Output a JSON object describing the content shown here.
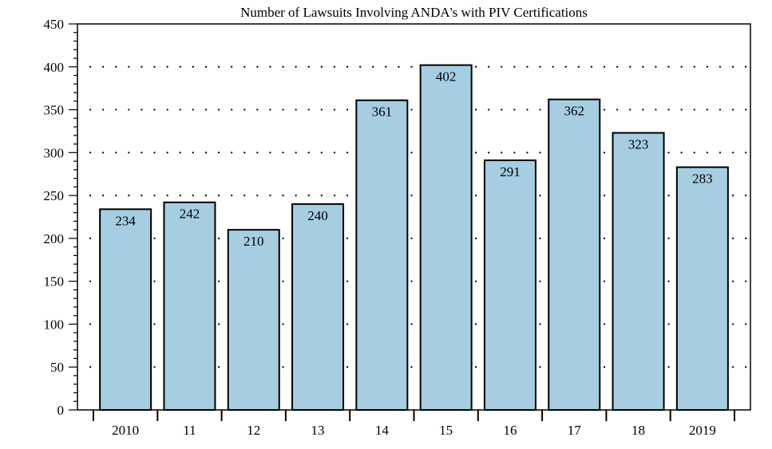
{
  "chart_data": {
    "type": "bar",
    "title": "Number of Lawsuits Involving ANDA's with PIV Certifications",
    "xlabel": "",
    "ylabel": "",
    "categories": [
      "2010",
      "11",
      "12",
      "13",
      "14",
      "15",
      "16",
      "17",
      "18",
      "2019"
    ],
    "values": [
      234,
      242,
      210,
      240,
      361,
      402,
      291,
      362,
      323,
      283
    ],
    "data_labels": [
      "234",
      "242",
      "210",
      "240",
      "361",
      "402",
      "291",
      "362",
      "323",
      "283"
    ],
    "ylim": [
      0,
      450
    ],
    "yticks": [
      0,
      50,
      100,
      150,
      200,
      250,
      300,
      350,
      400,
      450
    ],
    "ytick_labels": [
      "0",
      "50",
      "100",
      "150",
      "200",
      "250",
      "300",
      "350",
      "400",
      "450"
    ],
    "grid": "horizontal dotted",
    "bar_color": "#a6cde2",
    "bar_edge_color": "#000000"
  }
}
